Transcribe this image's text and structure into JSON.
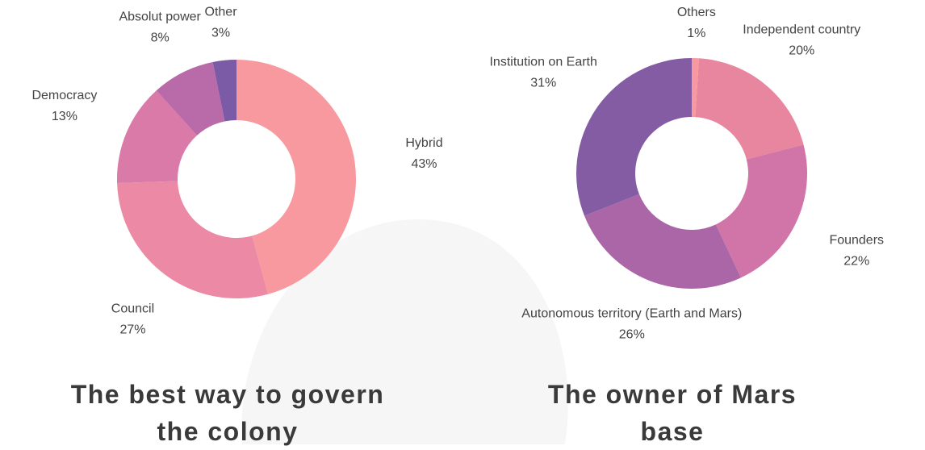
{
  "chart_data": [
    {
      "type": "pie",
      "title": "The best way to govern the colony",
      "categories": [
        "Hybrid",
        "Council",
        "Democracy",
        "Absolut power",
        "Other"
      ],
      "values": [
        43,
        27,
        13,
        8,
        3
      ],
      "value_labels": [
        "43%",
        "27%",
        "13%",
        "8%",
        "3%"
      ],
      "colors": [
        "#f7999e",
        "#ec8aa6",
        "#d97aa8",
        "#b96aa8",
        "#7b5aa6"
      ]
    },
    {
      "type": "pie",
      "title": "The owner of Mars base",
      "categories": [
        "Others",
        "Independent country",
        "Founders",
        "Autonomous territory (Earth and Mars)",
        "Institution on Earth"
      ],
      "values": [
        1,
        20,
        22,
        26,
        31
      ],
      "value_labels": [
        "1%",
        "20%",
        "22%",
        "26%",
        "31%"
      ],
      "colors": [
        "#f7999e",
        "#e9869f",
        "#d174a8",
        "#aa66a6",
        "#845ca4"
      ]
    }
  ]
}
